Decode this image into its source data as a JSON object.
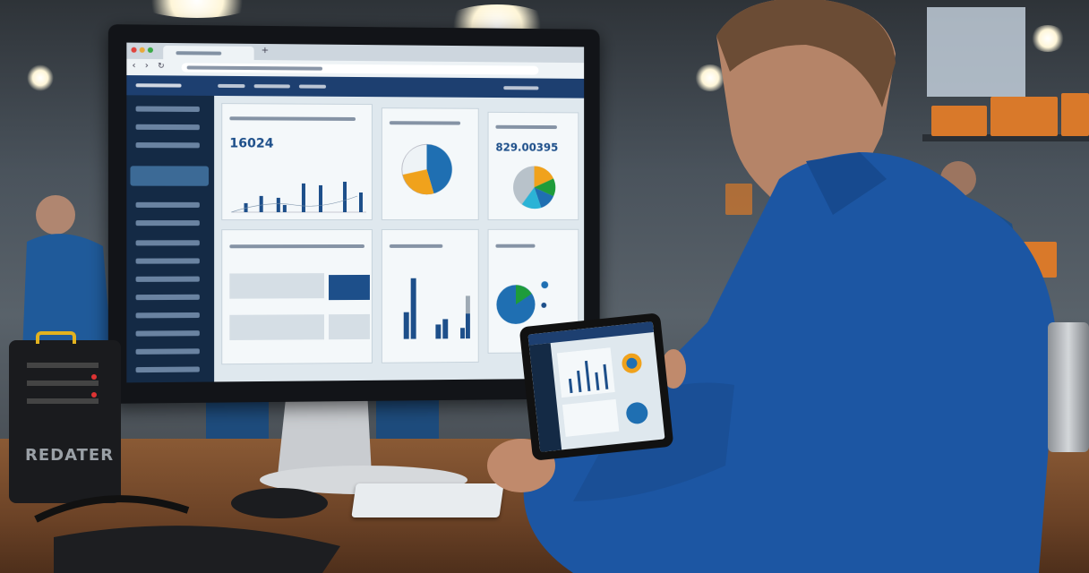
{
  "scene": "technician at workbench viewing analytics dashboard",
  "dashboard": {
    "kpi_primary": "16024",
    "kpi_secondary": "829.00395",
    "colors": {
      "nav": "#1d3f70",
      "sidebar": "#142a45",
      "accent_blue": "#1f6fb2",
      "orange": "#f0a21c",
      "green": "#1e9c3a",
      "cyan": "#2bb3d6"
    }
  },
  "device": {
    "brand_label": "REDATER"
  }
}
